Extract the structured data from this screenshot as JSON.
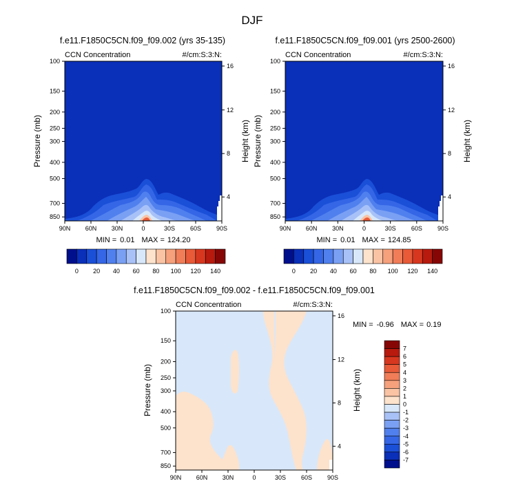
{
  "title": "DJF",
  "panels": [
    {
      "subtitle": "f.e11.F1850C5CN.f09_f09.002 (yrs 35-135)",
      "left_label": "CCN Concentration",
      "right_label": "#/cm:S:3:N:",
      "ylabel": "Pressure (mb)",
      "ylabel_right": "Height (km)",
      "pressure_ticks": [
        "100",
        "150",
        "200",
        "250",
        "300",
        "400",
        "500",
        "700",
        "850"
      ],
      "height_ticks": [
        "16",
        "12",
        "8",
        "4"
      ],
      "lat_ticks": [
        "90N",
        "60N",
        "30N",
        "0",
        "30S",
        "60S",
        "90S"
      ],
      "stats": {
        "min_label": "MIN =",
        "min": "0.01",
        "max_label": "MAX =",
        "max": "124.20"
      }
    },
    {
      "subtitle": "f.e11.F1850C5CN.f09_f09.001 (yrs 2500-2600)",
      "left_label": "CCN Concentration",
      "right_label": "#/cm:S:3:N:",
      "ylabel": "Pressure (mb)",
      "ylabel_right": "Height (km)",
      "pressure_ticks": [
        "100",
        "150",
        "200",
        "250",
        "300",
        "400",
        "500",
        "700",
        "850"
      ],
      "height_ticks": [
        "16",
        "12",
        "8",
        "4"
      ],
      "lat_ticks": [
        "90N",
        "60N",
        "30N",
        "0",
        "30S",
        "60S",
        "90S"
      ],
      "stats": {
        "min_label": "MIN =",
        "min": "0.01",
        "max_label": "MAX =",
        "max": "124.85"
      }
    },
    {
      "subtitle": "f.e11.F1850C5CN.f09_f09.002 - f.e11.F1850C5CN.f09_f09.001",
      "left_label": "CCN Concentration",
      "right_label": "#/cm:S:3:N:",
      "ylabel": "Pressure (mb)",
      "ylabel_right": "Height (km)",
      "pressure_ticks": [
        "100",
        "150",
        "200",
        "250",
        "300",
        "400",
        "500",
        "700",
        "850"
      ],
      "height_ticks": [
        "16",
        "12",
        "8",
        "4"
      ],
      "lat_ticks": [
        "90N",
        "60N",
        "30N",
        "0",
        "30S",
        "60S",
        "90S"
      ],
      "stats": {
        "min_label": "MIN =",
        "min": "-0.96",
        "max_label": "MAX =",
        "max": "0.19"
      }
    }
  ],
  "colorbar_top": {
    "labels": [
      "0",
      "20",
      "40",
      "60",
      "80",
      "100",
      "120",
      "140"
    ],
    "colors": [
      "#000f8c",
      "#0a2fb8",
      "#1a4fd8",
      "#3466e6",
      "#5080ee",
      "#7aa0f4",
      "#a8c2f8",
      "#d8e8fa",
      "#fde2cc",
      "#fac3a3",
      "#f6a07c",
      "#f07d58",
      "#e85a38",
      "#d8371f",
      "#b81a0e",
      "#860606"
    ]
  },
  "colorbar_diff": {
    "labels": [
      "7",
      "6",
      "5",
      "4",
      "3",
      "2",
      "1",
      "0",
      "-1",
      "-2",
      "-3",
      "-4",
      "-5",
      "-6",
      "-7"
    ],
    "colors": [
      "#860606",
      "#b81a0e",
      "#d8371f",
      "#e85a38",
      "#f07d58",
      "#f6a07c",
      "#fac3a3",
      "#fde2cc",
      "#d8e8fa",
      "#a8c2f8",
      "#7aa0f4",
      "#5080ee",
      "#3466e6",
      "#1a4fd8",
      "#0a2fb8",
      "#000f8c"
    ]
  },
  "chart_data": [
    {
      "type": "heatmap",
      "title": "f.e11.F1850C5CN.f09_f09.002 (yrs 35-135)",
      "variable": "CCN Concentration",
      "units": "#/cm:S:3:N:",
      "x": [
        "90N",
        "60N",
        "30N",
        "0",
        "30S",
        "60S",
        "90S"
      ],
      "y_pressure_mb": [
        100,
        150,
        200,
        250,
        300,
        400,
        500,
        700,
        850
      ],
      "y_height_km": [
        16,
        12,
        8,
        4
      ],
      "min": 0.01,
      "max": 124.2,
      "levels": [
        0,
        10,
        20,
        30,
        40,
        50,
        60,
        70,
        80,
        90,
        100,
        110,
        120,
        130,
        140
      ]
    },
    {
      "type": "heatmap",
      "title": "f.e11.F1850C5CN.f09_f09.001 (yrs 2500-2600)",
      "variable": "CCN Concentration",
      "units": "#/cm:S:3:N:",
      "x": [
        "90N",
        "60N",
        "30N",
        "0",
        "30S",
        "60S",
        "90S"
      ],
      "y_pressure_mb": [
        100,
        150,
        200,
        250,
        300,
        400,
        500,
        700,
        850
      ],
      "y_height_km": [
        16,
        12,
        8,
        4
      ],
      "min": 0.01,
      "max": 124.85,
      "levels": [
        0,
        10,
        20,
        30,
        40,
        50,
        60,
        70,
        80,
        90,
        100,
        110,
        120,
        130,
        140
      ]
    },
    {
      "type": "heatmap",
      "title": "f.e11.F1850C5CN.f09_f09.002 - f.e11.F1850C5CN.f09_f09.001",
      "variable": "CCN Concentration",
      "units": "#/cm:S:3:N:",
      "x": [
        "90N",
        "60N",
        "30N",
        "0",
        "30S",
        "60S",
        "90S"
      ],
      "y_pressure_mb": [
        100,
        150,
        200,
        250,
        300,
        400,
        500,
        700,
        850
      ],
      "y_height_km": [
        16,
        12,
        8,
        4
      ],
      "min": -0.96,
      "max": 0.19,
      "levels": [
        -7,
        -6,
        -5,
        -4,
        -3,
        -2,
        -1,
        0,
        1,
        2,
        3,
        4,
        5,
        6,
        7
      ]
    }
  ]
}
